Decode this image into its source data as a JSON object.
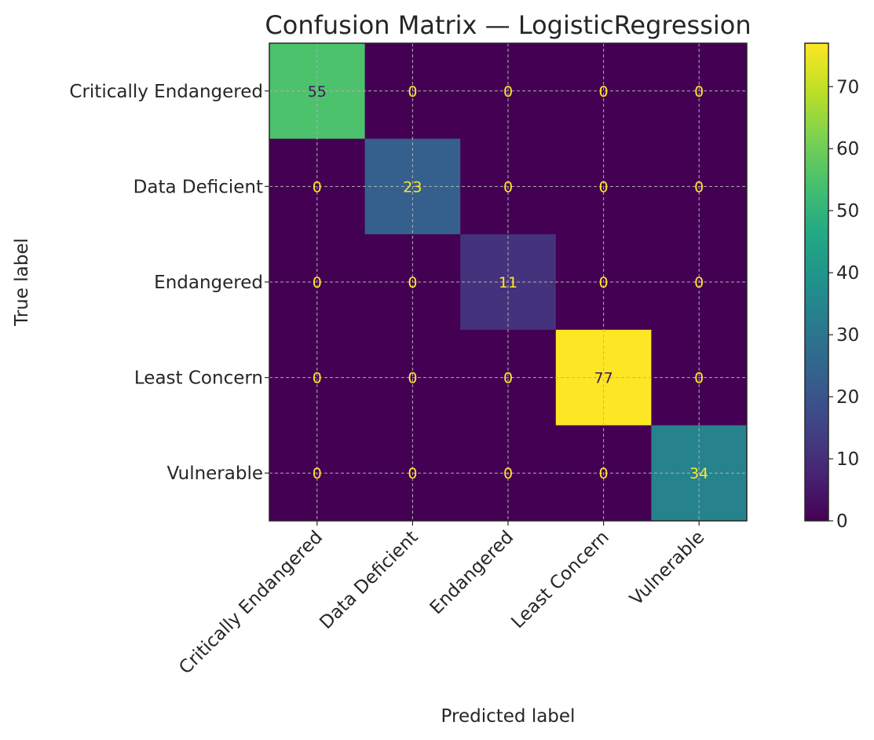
{
  "chart_data": {
    "type": "heatmap",
    "title": "Confusion Matrix — LogisticRegression",
    "xlabel": "Predicted label",
    "ylabel": "True label",
    "x_categories": [
      "Critically Endangered",
      "Data Deficient",
      "Endangered",
      "Least Concern",
      "Vulnerable"
    ],
    "y_categories": [
      "Critically Endangered",
      "Data Deficient",
      "Endangered",
      "Least Concern",
      "Vulnerable"
    ],
    "matrix": [
      [
        55,
        0,
        0,
        0,
        0
      ],
      [
        0,
        23,
        0,
        0,
        0
      ],
      [
        0,
        0,
        11,
        0,
        0
      ],
      [
        0,
        0,
        0,
        77,
        0
      ],
      [
        0,
        0,
        0,
        0,
        34
      ]
    ],
    "value_range": [
      0,
      77
    ],
    "colormap": "viridis",
    "colorbar_ticks": [
      "0",
      "10",
      "20",
      "30",
      "40",
      "50",
      "60",
      "70"
    ],
    "grid": true,
    "legend": "colorbar-right"
  }
}
